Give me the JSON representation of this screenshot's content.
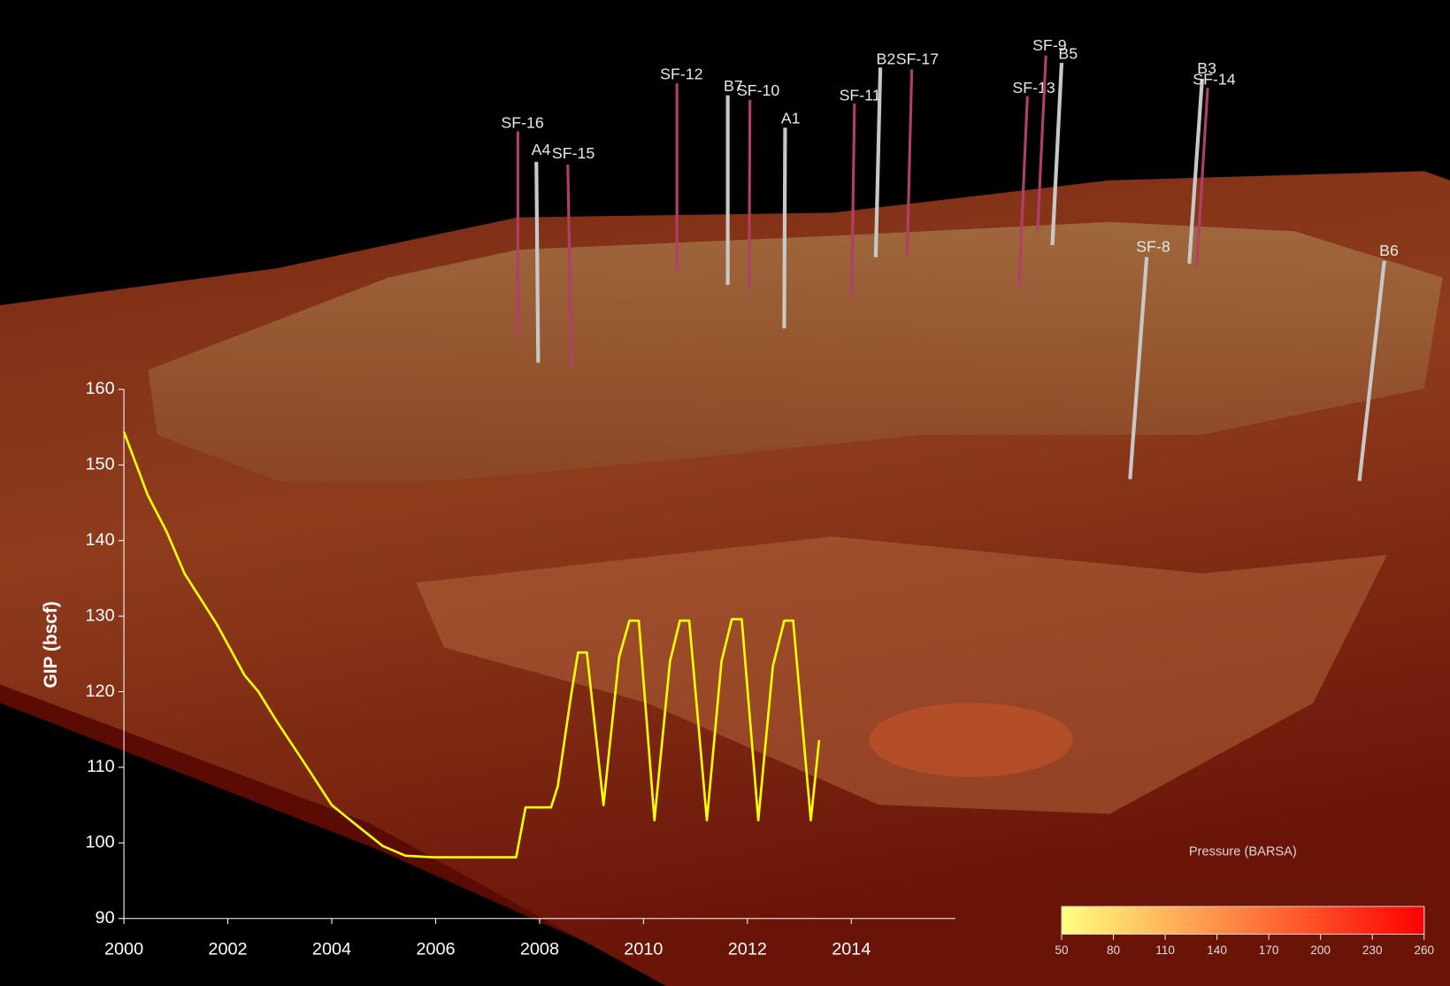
{
  "chart_data": [
    {
      "type": "line",
      "y_label": "GIP (bscf)",
      "color": "#ffff00",
      "x": [
        2000,
        2000.46,
        2000.82,
        2001.17,
        2001.79,
        2002.32,
        2002.59,
        2002.94,
        2003.47,
        2004.0,
        2004.54,
        2004.98,
        2005.42,
        2005.95,
        2007.55,
        2007.73,
        2008.22,
        2008.35,
        2008.61,
        2008.74,
        2008.91,
        2009.23,
        2009.53,
        2009.73,
        2009.91,
        2010.21,
        2010.51,
        2010.7,
        2010.88,
        2011.22,
        2011.5,
        2011.7,
        2011.89,
        2012.21,
        2012.49,
        2012.71,
        2012.88,
        2013.22,
        2013.38
      ],
      "values": [
        154.4,
        146.0,
        141.2,
        135.6,
        128.9,
        122.2,
        120.0,
        116.1,
        110.6,
        105.0,
        102.0,
        99.6,
        98.3,
        98.1,
        98.1,
        104.7,
        104.7,
        107.5,
        119.7,
        125.2,
        125.2,
        105.0,
        124.6,
        129.4,
        129.4,
        103.0,
        124.0,
        129.4,
        129.4,
        103.0,
        124.0,
        129.6,
        129.6,
        103.0,
        123.4,
        129.4,
        129.4,
        103.0,
        113.6
      ],
      "xlim": [
        2000,
        2016
      ],
      "xticks": [
        2000,
        2002,
        2004,
        2006,
        2008,
        2010,
        2012,
        2014
      ],
      "ylim": [
        90,
        160
      ],
      "yticks": [
        90,
        100,
        110,
        120,
        130,
        140,
        150,
        160
      ],
      "annotations": [
        "SF-16",
        "A4",
        "SF-15",
        "SF-12",
        "B7",
        "SF-10",
        "A1",
        "SF-11",
        "B2",
        "SF-17",
        "SF-13",
        "SF-9",
        "B5",
        "B3",
        "SF-14",
        "SF-8",
        "B6"
      ]
    },
    {
      "type": "colorbar",
      "title": "Pressure (BARSA)",
      "clim": [
        50,
        260
      ],
      "colors": [
        "#ffff80",
        "#ff0000"
      ],
      "ticks": [
        50,
        80,
        110,
        140,
        170,
        200,
        230,
        260
      ]
    }
  ]
}
